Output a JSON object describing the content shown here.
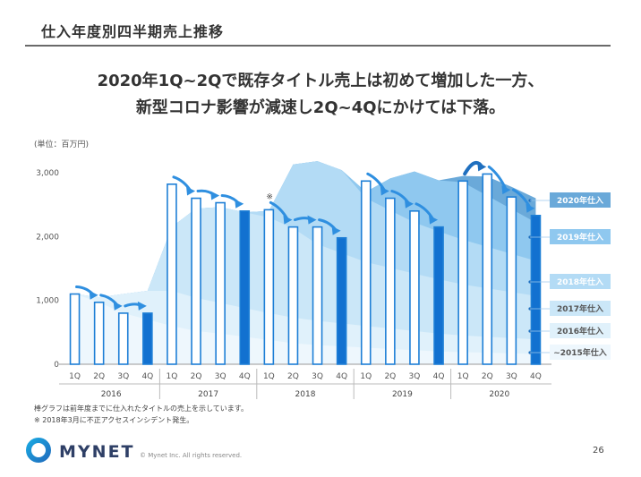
{
  "page": {
    "title": "仕入年度別四半期売上推移",
    "headline_line1": "2020年1Q~2Qで既存タイトル売上は初めて増加した一方、",
    "headline_line2": "新型コロナ影響が減速し2Q~4Qにかけては下落。",
    "unit": "(単位：百万円)",
    "note1": "棒グラフは前年度までに仕入れたタイトルの売上を示しています。",
    "note2": "※ 2018年3月に不正アクセスインシデント発生。",
    "brand": "MYNET",
    "copyright": "© Mynet Inc. All rights reserved.",
    "page_number": "26"
  },
  "colors": {
    "bar_outline": "#1e7fd6",
    "bar_solid": "#1271d0",
    "arrow": "#2f8fe0",
    "band_2015": "#eef7fd",
    "band_2016": "#e0f1fb",
    "band_2017": "#cbe7f8",
    "band_2018": "#b3dbf5",
    "band_2019": "#8fc8ef",
    "band_2020": "#6aa9d9"
  },
  "chart_data": {
    "type": "bar",
    "ylim": [
      0,
      3000
    ],
    "yticks": [
      "0",
      "1,000",
      "2,000",
      "3,000"
    ],
    "quarters": [
      "1Q",
      "2Q",
      "3Q",
      "4Q",
      "1Q",
      "2Q",
      "3Q",
      "4Q",
      "1Q",
      "2Q",
      "3Q",
      "4Q",
      "1Q",
      "2Q",
      "3Q",
      "4Q",
      "1Q",
      "2Q",
      "3Q",
      "4Q"
    ],
    "years": [
      "2016",
      "2017",
      "2018",
      "2019",
      "2020"
    ],
    "bars": [
      1100,
      970,
      800,
      800,
      2820,
      2600,
      2530,
      2400,
      2420,
      2150,
      2150,
      1980,
      2870,
      2600,
      2400,
      2150,
      2870,
      2980,
      2620,
      2330
    ],
    "solid_bars": [
      3,
      7,
      11,
      15,
      19
    ],
    "stacked_bands": [
      {
        "name": "~2015年仕入",
        "values": [
          1100,
          970,
          800,
          700,
          600,
          520,
          480,
          430,
          380,
          330,
          300,
          280,
          260,
          240,
          220,
          200,
          190,
          180,
          170,
          160
        ]
      },
      {
        "name": "2016年仕入",
        "values": [
          0,
          80,
          300,
          450,
          550,
          520,
          480,
          450,
          420,
          400,
          380,
          360,
          340,
          320,
          300,
          280,
          260,
          250,
          240,
          230
        ]
      },
      {
        "name": "2017年仕入",
        "values": [
          0,
          0,
          0,
          0,
          1000,
          1400,
          1500,
          1500,
          1500,
          1400,
          1200,
          1100,
          1000,
          950,
          900,
          850,
          800,
          760,
          720,
          680
        ]
      },
      {
        "name": "2018年仕入",
        "values": [
          0,
          0,
          0,
          0,
          0,
          0,
          0,
          0,
          100,
          1000,
          1300,
          1300,
          1000,
          900,
          800,
          750,
          700,
          650,
          600,
          550
        ]
      },
      {
        "name": "2019年仕入",
        "values": [
          0,
          0,
          0,
          0,
          0,
          0,
          0,
          0,
          0,
          0,
          0,
          0,
          100,
          500,
          800,
          800,
          900,
          800,
          700,
          600
        ]
      },
      {
        "name": "2020年仕入",
        "values": [
          0,
          0,
          0,
          0,
          0,
          0,
          0,
          0,
          0,
          0,
          0,
          0,
          0,
          0,
          0,
          0,
          100,
          300,
          350,
          380
        ]
      }
    ],
    "legend_labels": [
      "2020年仕入",
      "2019年仕入",
      "2018年仕入",
      "2017年仕入",
      "2016年仕入",
      "~2015年仕入"
    ],
    "annotation": "※"
  }
}
